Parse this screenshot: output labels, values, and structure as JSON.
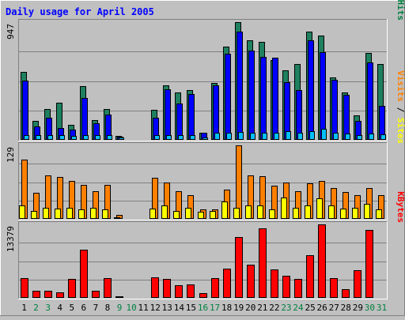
{
  "chart_data": {
    "type": "bar",
    "title": "Daily usage for April 2005",
    "categories": [
      "1",
      "2",
      "3",
      "4",
      "5",
      "6",
      "7",
      "8",
      "9",
      "10",
      "11",
      "12",
      "13",
      "14",
      "15",
      "16",
      "17",
      "18",
      "19",
      "20",
      "21",
      "22",
      "23",
      "24",
      "25",
      "26",
      "27",
      "28",
      "29",
      "30",
      "31"
    ],
    "weekend_days": [
      2,
      3,
      9,
      10,
      16,
      17,
      23,
      24,
      30,
      31
    ],
    "panels": [
      {
        "id": "pages-files-hits",
        "max_label": "947",
        "ymax": 947,
        "right_labels": [
          {
            "text": "Pages",
            "color": "#00c0ff"
          },
          {
            "text": " / ",
            "color": "#000000"
          },
          {
            "text": "Files",
            "color": "#0000ff"
          },
          {
            "text": " / ",
            "color": "#000000"
          },
          {
            "text": "Hits",
            "color": "#008040"
          }
        ],
        "series": [
          {
            "name": "Hits",
            "color": "#1f8060",
            "values": [
              545,
              150,
              250,
              300,
              120,
              430,
              160,
              250,
              30,
              0,
              0,
              240,
              440,
              380,
              400,
              60,
              460,
              750,
              950,
              800,
              790,
              640,
              560,
              610,
              870,
              840,
              500,
              380,
              200,
              700,
              610
            ]
          },
          {
            "name": "Files",
            "color": "#0000ff",
            "values": [
              475,
              110,
              175,
              95,
              85,
              335,
              135,
              205,
              25,
              0,
              0,
              180,
              405,
              295,
              370,
              55,
              440,
              690,
              870,
              720,
              670,
              660,
              465,
              400,
              800,
              705,
              480,
              360,
              150,
              620,
              275
            ]
          },
          {
            "name": "Pages",
            "color": "#00c0ff",
            "values": [
              40,
              35,
              40,
              35,
              30,
              40,
              40,
              40,
              20,
              0,
              0,
              35,
              40,
              40,
              40,
              20,
              55,
              60,
              65,
              55,
              60,
              60,
              70,
              60,
              70,
              90,
              55,
              50,
              40,
              50,
              45
            ]
          }
        ]
      },
      {
        "id": "visits-sites",
        "max_label": "129",
        "ymax": 129,
        "right_labels": [
          {
            "text": "Visits",
            "color": "#ff8000"
          },
          {
            "text": " / ",
            "color": "#000000"
          },
          {
            "text": "Sites",
            "color": "#ffff00"
          }
        ],
        "series": [
          {
            "name": "Visits",
            "color": "#ff8000",
            "values": [
              104,
              46,
              76,
              74,
              66,
              60,
              48,
              60,
              7,
              0,
              0,
              72,
              64,
              49,
              42,
              16,
              17,
              51,
              129,
              76,
              75,
              58,
              64,
              48,
              62,
              67,
              54,
              47,
              42,
              54,
              42
            ]
          },
          {
            "name": "Sites",
            "color": "#ffff00",
            "values": [
              24,
              14,
              20,
              18,
              20,
              16,
              20,
              16,
              2,
              0,
              0,
              18,
              24,
              14,
              20,
              12,
              14,
              30,
              20,
              24,
              24,
              16,
              38,
              20,
              24,
              36,
              24,
              18,
              20,
              26,
              16
            ]
          }
        ]
      },
      {
        "id": "kbytes",
        "max_label": "13379",
        "ymax": 13379,
        "right_labels": [
          {
            "text": "KBytes",
            "color": "#ff0000"
          }
        ],
        "series": [
          {
            "name": "KBytes",
            "color": "#ff0000",
            "values": [
              3600,
              1250,
              1250,
              1050,
              3400,
              8800,
              1250,
              3650,
              140,
              0,
              0,
              3700,
              3450,
              2300,
              2400,
              850,
              3550,
              5350,
              11100,
              6000,
              12700,
              5200,
              4000,
              3400,
              7700,
              13379,
              3600,
              1600,
              5050,
              12400,
              0
            ]
          }
        ]
      }
    ]
  }
}
